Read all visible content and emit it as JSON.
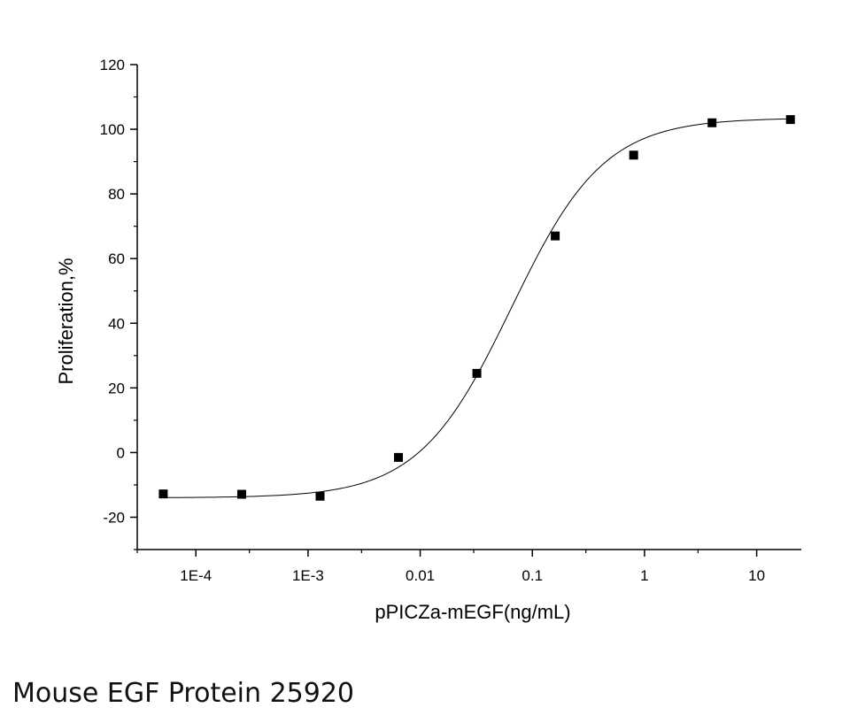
{
  "caption": "Mouse EGF Protein 25920",
  "chart_data": {
    "type": "scatter",
    "xlabel": "pPICZa-mEGF(ng/mL)",
    "ylabel": "Proliferation,%",
    "x_scale": "log",
    "xlim": [
      3e-05,
      25
    ],
    "ylim": [
      -30,
      120
    ],
    "x_ticks": [
      {
        "value": 0.0001,
        "label": "1E-4"
      },
      {
        "value": 0.001,
        "label": "1E-3"
      },
      {
        "value": 0.01,
        "label": "0.01"
      },
      {
        "value": 0.1,
        "label": "0.1"
      },
      {
        "value": 1,
        "label": "1"
      },
      {
        "value": 10,
        "label": "10"
      }
    ],
    "y_ticks": [
      {
        "value": -20,
        "label": "-20"
      },
      {
        "value": 0,
        "label": "0"
      },
      {
        "value": 20,
        "label": "20"
      },
      {
        "value": 40,
        "label": "40"
      },
      {
        "value": 60,
        "label": "60"
      },
      {
        "value": 80,
        "label": "80"
      },
      {
        "value": 100,
        "label": "100"
      },
      {
        "value": 120,
        "label": "120"
      }
    ],
    "series": [
      {
        "marker": "square",
        "color": "#000000",
        "points": [
          {
            "x": 5.12e-05,
            "y": -12.8
          },
          {
            "x": 0.000256,
            "y": -12.9
          },
          {
            "x": 0.00128,
            "y": -13.5
          },
          {
            "x": 0.0064,
            "y": -1.5
          },
          {
            "x": 0.032,
            "y": 24.5
          },
          {
            "x": 0.16,
            "y": 67.0
          },
          {
            "x": 0.8,
            "y": 92.0
          },
          {
            "x": 4,
            "y": 102.0
          },
          {
            "x": 20,
            "y": 103.0
          }
        ]
      }
    ],
    "fit_curve": {
      "model": "4PL",
      "bottom": -14,
      "top": 103.5,
      "ec50": 0.065,
      "hill": 1.05,
      "color": "#000000"
    },
    "grid": false,
    "legend": "none"
  }
}
